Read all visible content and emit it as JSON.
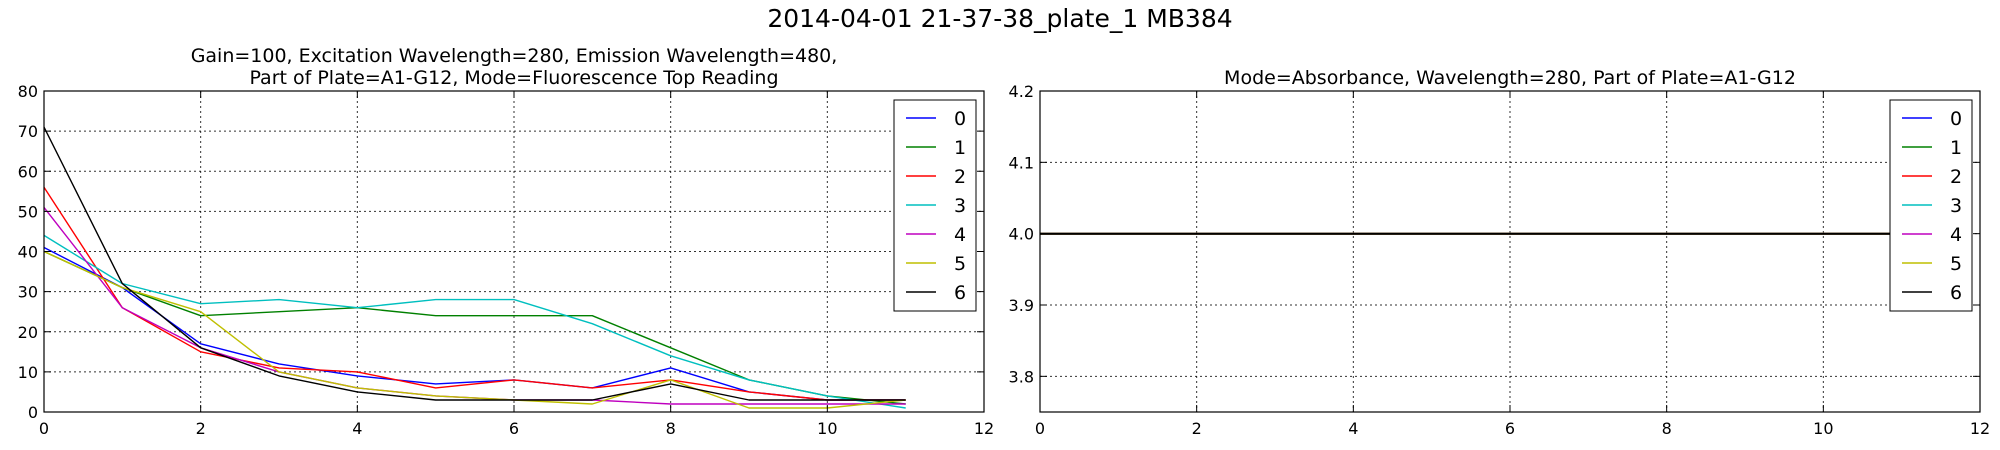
{
  "figure": {
    "suptitle": "2014-04-01 21-37-38_plate_1 MB384"
  },
  "chart_data": [
    {
      "type": "line",
      "title_lines": [
        "Gain=100, Excitation Wavelength=280, Emission Wavelength=480,",
        "Part of Plate=A1-G12, Mode=Fluorescence Top Reading"
      ],
      "xlabel": "",
      "ylabel": "",
      "xlim": [
        0,
        12
      ],
      "ylim": [
        0,
        80
      ],
      "xticks": [
        0,
        2,
        4,
        6,
        8,
        10,
        12
      ],
      "yticks": [
        0,
        10,
        20,
        30,
        40,
        50,
        60,
        70,
        80
      ],
      "grid": true,
      "legend_position": "top-right",
      "x": [
        0,
        1,
        2,
        3,
        4,
        5,
        6,
        7,
        8,
        9,
        10,
        11
      ],
      "series": [
        {
          "name": "0",
          "color": "#0000ff",
          "values": [
            41,
            31,
            17,
            12,
            9,
            7,
            8,
            6,
            11,
            5,
            3,
            3
          ]
        },
        {
          "name": "1",
          "color": "#008000",
          "values": [
            40,
            31,
            24,
            25,
            26,
            24,
            24,
            24,
            16,
            8,
            4,
            2
          ]
        },
        {
          "name": "2",
          "color": "#ff0000",
          "values": [
            56,
            26,
            15,
            11,
            10,
            6,
            8,
            6,
            8,
            5,
            3,
            3
          ]
        },
        {
          "name": "3",
          "color": "#00bfbf",
          "values": [
            44,
            32,
            27,
            28,
            26,
            28,
            28,
            22,
            14,
            8,
            4,
            1
          ]
        },
        {
          "name": "4",
          "color": "#bf00bf",
          "values": [
            51,
            26,
            16,
            10,
            6,
            4,
            3,
            3,
            2,
            2,
            2,
            2
          ]
        },
        {
          "name": "5",
          "color": "#bfbf00",
          "values": [
            40,
            31,
            25,
            10,
            6,
            4,
            3,
            2,
            8,
            1,
            1,
            3
          ]
        },
        {
          "name": "6",
          "color": "#000000",
          "values": [
            71,
            32,
            16,
            9,
            5,
            3,
            3,
            3,
            7,
            3,
            3,
            3
          ]
        }
      ]
    },
    {
      "type": "line",
      "title_lines": [
        "Mode=Absorbance, Wavelength=280, Part of Plate=A1-G12"
      ],
      "xlabel": "",
      "ylabel": "",
      "xlim": [
        0,
        12
      ],
      "ylim": [
        3.75,
        4.2
      ],
      "xticks": [
        0,
        2,
        4,
        6,
        8,
        10,
        12
      ],
      "yticks": [
        3.8,
        3.9,
        4.0,
        4.1,
        4.2
      ],
      "grid": true,
      "legend_position": "top-right",
      "x": [
        0,
        1,
        2,
        3,
        4,
        5,
        6,
        7,
        8,
        9,
        10,
        11
      ],
      "series": [
        {
          "name": "0",
          "color": "#0000ff",
          "values": [
            4,
            4,
            4,
            4,
            4,
            4,
            4,
            4,
            4,
            4,
            4,
            4
          ]
        },
        {
          "name": "1",
          "color": "#008000",
          "values": [
            4,
            4,
            4,
            4,
            4,
            4,
            4,
            4,
            4,
            4,
            4,
            4
          ]
        },
        {
          "name": "2",
          "color": "#ff0000",
          "values": [
            4,
            4,
            4,
            4,
            4,
            4,
            4,
            4,
            4,
            4,
            4,
            4
          ]
        },
        {
          "name": "3",
          "color": "#00bfbf",
          "values": [
            4,
            4,
            4,
            4,
            4,
            4,
            4,
            4,
            4,
            4,
            4,
            4
          ]
        },
        {
          "name": "4",
          "color": "#bf00bf",
          "values": [
            4,
            4,
            4,
            4,
            4,
            4,
            4,
            4,
            4,
            4,
            4,
            4
          ]
        },
        {
          "name": "5",
          "color": "#bfbf00",
          "values": [
            4,
            4,
            4,
            4,
            4,
            4,
            4,
            4,
            4,
            4,
            4,
            4
          ]
        },
        {
          "name": "6",
          "color": "#000000",
          "values": [
            4,
            4,
            4,
            4,
            4,
            4,
            4,
            4,
            4,
            4,
            4,
            4
          ]
        }
      ]
    }
  ]
}
